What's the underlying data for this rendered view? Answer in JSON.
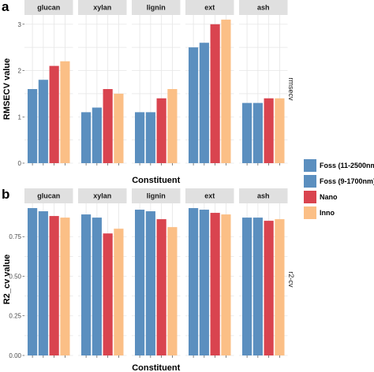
{
  "chart_data": [
    {
      "type": "bar",
      "panel": "a",
      "facet_row_label": "rmsecv",
      "ylabel": "RMSECV value",
      "xlabel": "Constituent",
      "ylim": [
        0,
        3.2
      ],
      "yticks": [
        0,
        1,
        2,
        3
      ],
      "categories": [
        "glucan",
        "xylan",
        "lignin",
        "ext",
        "ash"
      ],
      "series": [
        {
          "name": "Foss (11-2500nm",
          "values": [
            1.6,
            1.1,
            1.1,
            2.5,
            1.3
          ]
        },
        {
          "name": "Foss (9-1700nm)",
          "values": [
            1.8,
            1.2,
            1.1,
            2.6,
            1.3
          ]
        },
        {
          "name": "Nano",
          "values": [
            2.1,
            1.6,
            1.4,
            3.0,
            1.4
          ]
        },
        {
          "name": "Inno",
          "values": [
            2.2,
            1.5,
            1.6,
            3.1,
            1.4
          ]
        }
      ]
    },
    {
      "type": "bar",
      "panel": "b",
      "facet_row_label": "r2-cv",
      "ylabel": "R2_cv value",
      "xlabel": "Constituent",
      "ylim": [
        0,
        0.96
      ],
      "yticks": [
        "0.00",
        "0.25",
        "0.50",
        "0.75"
      ],
      "categories": [
        "glucan",
        "xylan",
        "lignin",
        "ext",
        "ash"
      ],
      "series": [
        {
          "name": "Foss (11-2500nm",
          "values": [
            0.93,
            0.89,
            0.92,
            0.93,
            0.87
          ]
        },
        {
          "name": "Foss (9-1700nm)",
          "values": [
            0.91,
            0.87,
            0.91,
            0.92,
            0.87
          ]
        },
        {
          "name": "Nano",
          "values": [
            0.88,
            0.77,
            0.86,
            0.9,
            0.85
          ]
        },
        {
          "name": "Inno",
          "values": [
            0.87,
            0.8,
            0.81,
            0.89,
            0.86
          ]
        }
      ]
    }
  ],
  "legend": {
    "entries": [
      "Foss (11-2500nm",
      "Foss (9-1700nm)",
      "Nano",
      "Inno"
    ],
    "placement": "right"
  },
  "colors": {
    "series": [
      "#5b8fbf",
      "#5b8fbf",
      "#d9444f",
      "#fbbf86"
    ]
  }
}
